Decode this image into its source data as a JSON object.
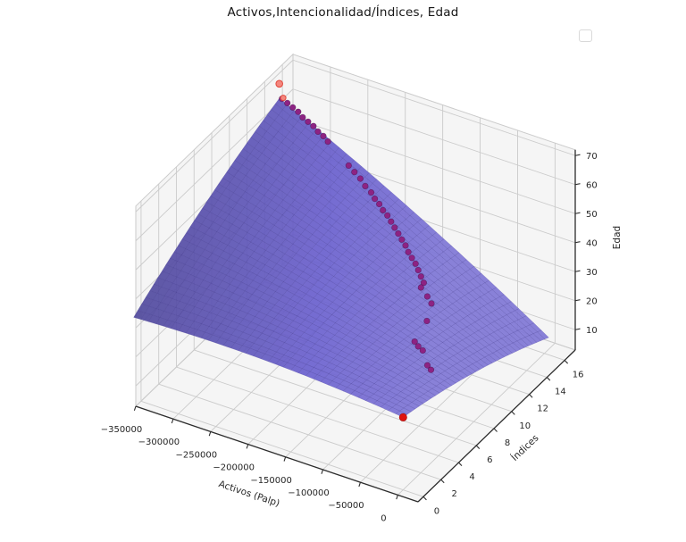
{
  "figure": {
    "title": "Activos,Intencionalidad/Índices, Edad",
    "background": "#ffffff",
    "legend": {
      "present": true,
      "items": []
    }
  },
  "chart_data": {
    "type": "surface3d_with_scatter",
    "title": "Activos,Intencionalidad/Índices, Edad",
    "x_axis": {
      "label": "Activos (Palp)",
      "ticks": [
        -350000,
        -300000,
        -250000,
        -200000,
        -150000,
        -100000,
        -50000,
        0
      ],
      "lim": [
        -350000,
        27000
      ]
    },
    "y_axis": {
      "label": "Índices",
      "ticks": [
        0,
        2,
        4,
        6,
        8,
        10,
        12,
        14,
        16
      ],
      "lim": [
        -0.6,
        17.2
      ]
    },
    "z_axis": {
      "label": "Edad",
      "ticks": [
        10,
        20,
        30,
        40,
        50,
        60,
        70
      ],
      "lim": [
        3,
        72
      ]
    },
    "surface": {
      "x_range": [
        -360000,
        0
      ],
      "y_range": [
        0,
        16.5
      ],
      "corner_z": {
        "left_xmin_ymin": 31,
        "back_xmin_ymax": 58,
        "front_xmax_ymin": 28,
        "right_xmax_ymax": 7
      },
      "edge_bulge": 8,
      "grid_segments": 36,
      "fill_color": "#6c62cf",
      "mesh_color": "rgba(48,38,130,0.30)",
      "opacity": 0.93
    },
    "scatter": {
      "trail": {
        "color": "#8d2383",
        "edge_color": "rgba(40,0,50,0.45)",
        "points": [
          [
            -356400,
            16.5
          ],
          [
            -349200,
            16.5
          ],
          [
            -342000,
            16.5
          ],
          [
            -334800,
            16.5
          ],
          [
            -327600,
            16.4
          ],
          [
            -320400,
            16.4
          ],
          [
            -313200,
            16.4
          ],
          [
            -306000,
            16.3
          ],
          [
            -298800,
            16.3
          ],
          [
            -291600,
            16.2
          ],
          [
            -259200,
            15.8
          ],
          [
            -250200,
            15.7
          ],
          [
            -241200,
            15.6
          ],
          [
            -232200,
            15.4
          ],
          [
            -223200,
            15.3
          ],
          [
            -216000,
            15.1
          ],
          [
            -208800,
            15.0
          ],
          [
            -201600,
            14.8
          ],
          [
            -194400,
            14.7
          ],
          [
            -187200,
            14.5
          ],
          [
            -180000,
            14.3
          ],
          [
            -172800,
            14.1
          ],
          [
            -165600,
            13.9
          ],
          [
            -158400,
            13.7
          ],
          [
            -151200,
            13.4
          ],
          [
            -144000,
            13.2
          ],
          [
            -136800,
            13.0
          ],
          [
            -129600,
            12.7
          ],
          [
            -122400,
            12.4
          ],
          [
            -115200,
            12.1
          ],
          [
            -113000,
            11.6
          ],
          [
            -101000,
            11.3
          ],
          [
            -92000,
            11.0
          ],
          [
            -79200,
            9.4
          ],
          [
            -68400,
            7.1
          ],
          [
            -61200,
            6.9
          ],
          [
            -54000,
            6.8
          ],
          [
            -36000,
            5.8
          ],
          [
            -28800,
            5.6
          ]
        ]
      },
      "peak_markers": {
        "color": "#f4877e",
        "edge_color": "#e2483d",
        "points": [
          [
            -360000,
            16.5,
            63
          ],
          [
            -353600,
            16.4,
            59
          ]
        ]
      },
      "valley_marker": {
        "color": "#de1310",
        "edge_color": "#a00c0a",
        "points": [
          [
            0,
            0,
            28
          ]
        ]
      }
    },
    "pane_color": "#f5f5f5",
    "grid_color": "#cbcbcb",
    "axis_color": "#2c2c2c",
    "tick_label_color": "#262626",
    "tick_font_size": 10,
    "axis_label_font_size": 10.5
  }
}
